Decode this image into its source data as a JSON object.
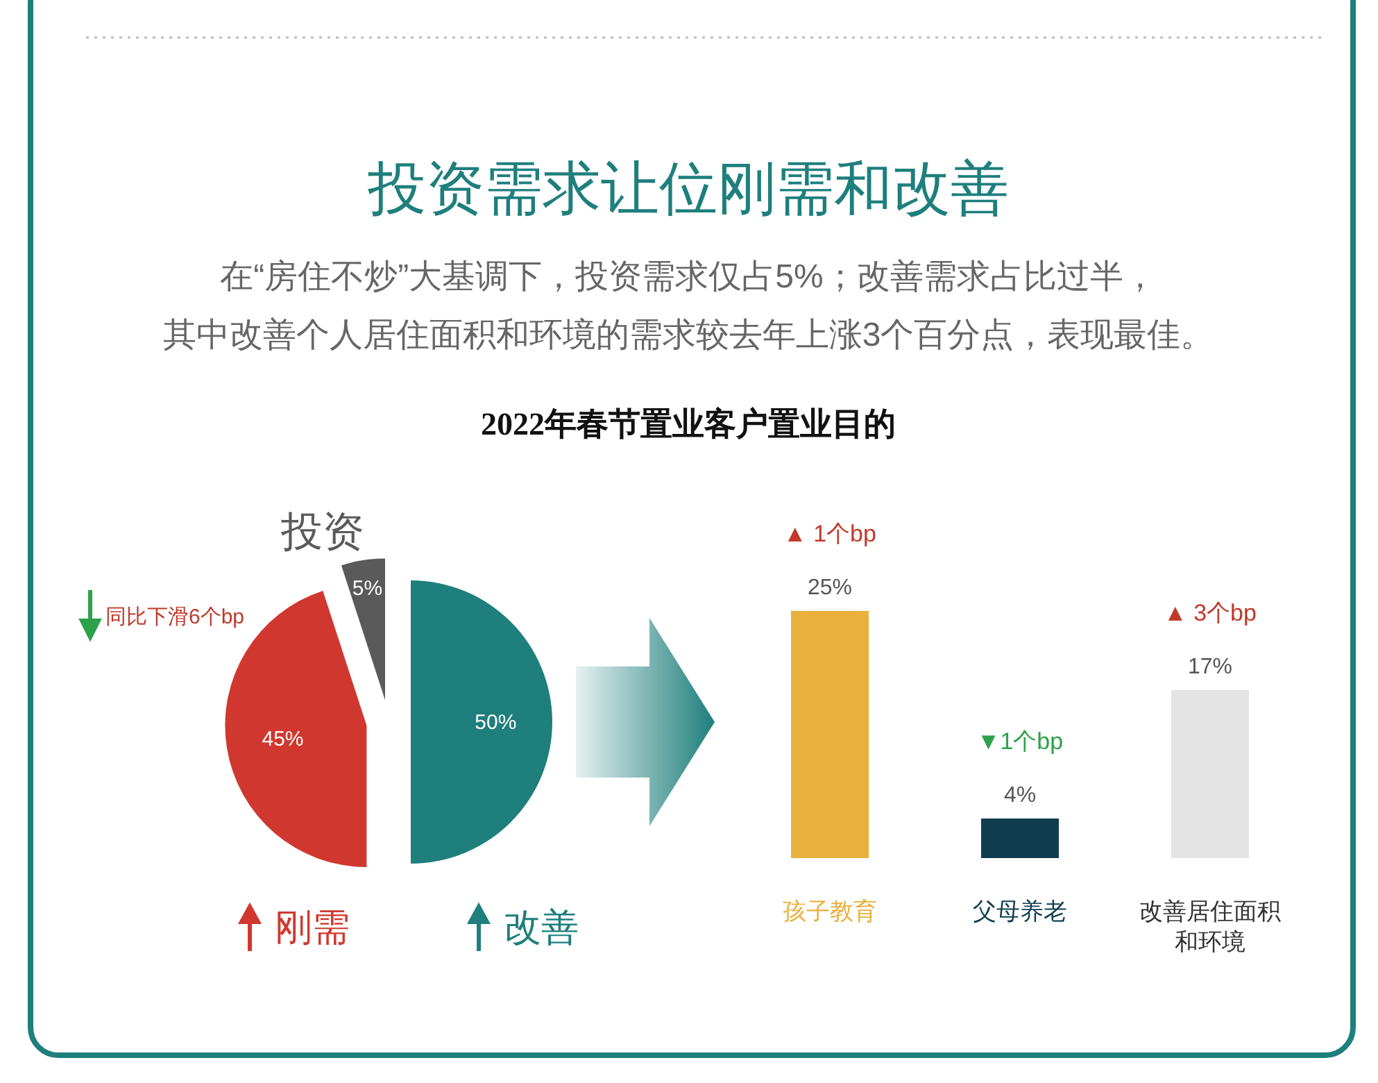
{
  "chart_data": [
    {
      "type": "pie",
      "title": "投资需求让位刚需和改善",
      "legend": "bottom",
      "subtitle": "在“房住不炒”大基调下，投资需求仅占5%；改善需求占比过半，其中改善个人居住面积和环境的需求较去年上涨3个百分点，表现最佳。",
      "categories": [
        "改善",
        "刚需",
        "投资"
      ],
      "values": [
        50,
        45,
        5
      ],
      "colors": [
        "#1e7f7c",
        "#d0382f",
        "#5a5a5a"
      ],
      "value_labels": [
        "50%",
        "45%",
        "5%"
      ],
      "annotations": [
        "2022年春节置业客户置业目的",
        "同比下滑6个bp"
      ]
    },
    {
      "type": "bar",
      "categories": [
        "孩子教育",
        "父母养老",
        "改善居住面积和环境"
      ],
      "values": [
        25,
        4,
        17
      ],
      "colors": [
        "#e9b03b",
        "#0f3d4f",
        "#e4e4e4"
      ],
      "value_labels": [
        "25%",
        "4%",
        "17%"
      ],
      "annotations": [
        {
          "text": "▲ 1个bp",
          "x": "孩子教育",
          "y": 25
        },
        {
          "text": "▼1个bp",
          "x": "父母养老",
          "y": 4
        },
        {
          "text": "▲ 3个bp",
          "x": "改善居住面积和环境",
          "y": 17
        }
      ]
    }
  ]
}
